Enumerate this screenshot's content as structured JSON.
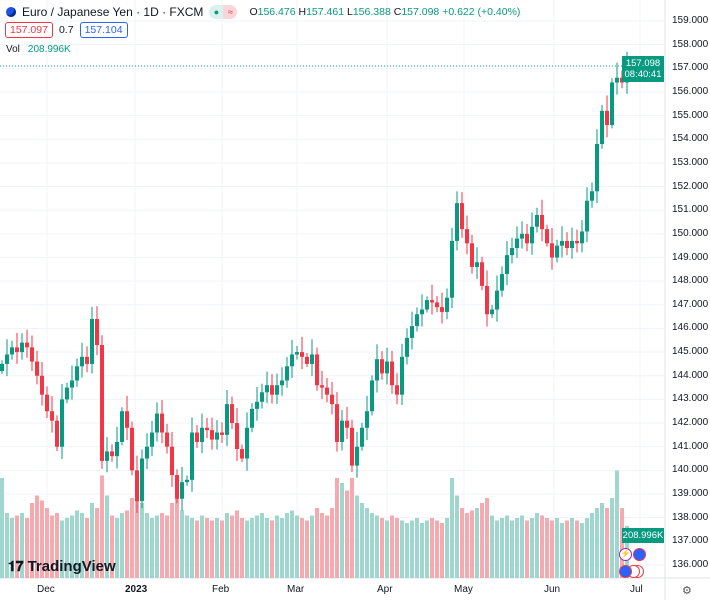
{
  "header": {
    "symbol": "Euro / Japanese Yen · 1D · FXCM",
    "open": "156.476",
    "high": "157.461",
    "low": "156.388",
    "close": "157.098",
    "change": "+0.622 (+0.40%)",
    "bid": "157.097",
    "spread": "0.7",
    "ask": "157.104",
    "vol_label": "Vol",
    "vol_value": "208.996K"
  },
  "price_axis": {
    "labels": [
      "159.000",
      "158.000",
      "157.000",
      "156.000",
      "155.000",
      "154.000",
      "153.000",
      "152.000",
      "151.000",
      "150.000",
      "149.000",
      "148.000",
      "147.000",
      "146.000",
      "145.000",
      "144.000",
      "143.000",
      "142.000",
      "141.000",
      "140.000",
      "139.000",
      "138.000",
      "137.000",
      "136.000"
    ],
    "last_price": "157.098",
    "countdown": "08:40:41",
    "last_volume": "208.996K"
  },
  "time_axis": [
    "Dec",
    "2023",
    "Feb",
    "Mar",
    "Apr",
    "May",
    "Jun",
    "Jul"
  ],
  "branding": "TradingView",
  "colors": {
    "up": "#089981",
    "down": "#f23645",
    "up_vol": "#9fd7cf",
    "down_vol": "#f7a9b0"
  },
  "chart_data": {
    "type": "candlestick",
    "ylim": [
      135.7,
      159.4
    ],
    "open_first": 144.2,
    "closes": [
      144.5,
      144.9,
      145.2,
      145.0,
      145.4,
      145.2,
      144.6,
      144.0,
      143.2,
      142.5,
      142.1,
      141.0,
      143.0,
      143.5,
      143.8,
      144.4,
      144.8,
      144.5,
      146.4,
      145.3,
      140.4,
      140.8,
      140.6,
      141.2,
      142.5,
      141.8,
      140.0,
      138.7,
      140.5,
      141.0,
      141.6,
      142.4,
      141.6,
      141.0,
      139.8,
      138.8,
      139.5,
      139.6,
      141.6,
      141.2,
      141.8,
      141.7,
      141.3,
      141.6,
      141.5,
      142.8,
      142.0,
      140.9,
      140.5,
      141.8,
      142.6,
      142.9,
      143.3,
      143.6,
      143.2,
      143.6,
      143.8,
      144.4,
      144.9,
      145.0,
      144.8,
      144.5,
      144.9,
      143.6,
      143.5,
      143.2,
      142.8,
      141.2,
      142.1,
      141.8,
      140.2,
      141.0,
      141.8,
      142.5,
      143.8,
      144.7,
      144.1,
      144.6,
      143.6,
      143.2,
      144.8,
      145.6,
      146.1,
      146.6,
      146.8,
      147.2,
      147.1,
      146.9,
      146.7,
      147.3,
      149.7,
      151.3,
      150.2,
      149.6,
      148.6,
      148.8,
      147.8,
      146.6,
      146.8,
      147.6,
      148.3,
      149.1,
      149.4,
      149.8,
      150.0,
      149.6,
      150.3,
      150.8,
      150.2,
      149.6,
      149.0,
      149.5,
      149.7,
      149.4,
      149.7,
      149.6,
      150.1,
      151.4,
      151.8,
      153.8,
      155.2,
      154.6,
      156.4,
      156.6,
      156.4,
      157.098
    ],
    "volumes_k": [
      400,
      260,
      240,
      250,
      260,
      240,
      300,
      330,
      310,
      280,
      250,
      260,
      230,
      240,
      250,
      270,
      260,
      240,
      300,
      280,
      410,
      330,
      250,
      240,
      260,
      270,
      320,
      420,
      300,
      260,
      240,
      250,
      260,
      250,
      300,
      330,
      270,
      250,
      240,
      230,
      250,
      240,
      230,
      240,
      230,
      260,
      250,
      270,
      240,
      230,
      240,
      250,
      260,
      240,
      230,
      250,
      240,
      260,
      270,
      250,
      240,
      230,
      250,
      280,
      260,
      250,
      280,
      400,
      380,
      350,
      400,
      330,
      300,
      280,
      260,
      250,
      240,
      230,
      250,
      240,
      230,
      220,
      230,
      240,
      220,
      230,
      240,
      230,
      220,
      240,
      400,
      330,
      280,
      260,
      270,
      280,
      300,
      320,
      250,
      230,
      240,
      250,
      230,
      240,
      250,
      230,
      240,
      260,
      250,
      240,
      230,
      240,
      220,
      230,
      240,
      230,
      220,
      240,
      260,
      280,
      300,
      280,
      320,
      430,
      280,
      209
    ]
  }
}
